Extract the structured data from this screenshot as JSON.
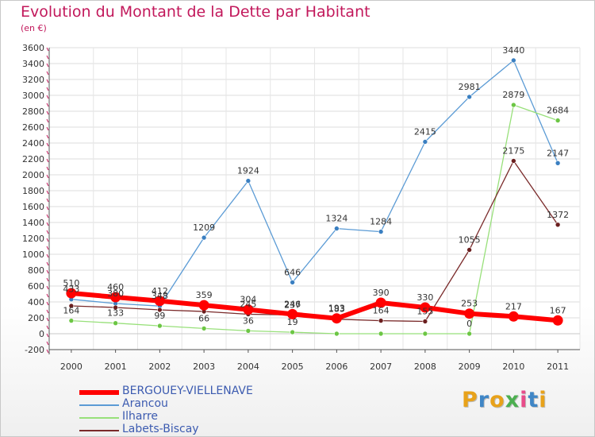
{
  "title": "Evolution du Montant de la Dette par Habitant",
  "unit": "(en €)",
  "logo": {
    "text": "Proxiti",
    "letter_colors": [
      "#e8a21a",
      "#3f86c6",
      "#e8a21a",
      "#4caf50",
      "#e84c8a",
      "#3f86c6",
      "#e8a21a"
    ]
  },
  "chart_data": {
    "type": "line",
    "title": "Evolution du Montant de la Dette par Habitant",
    "ylabel": "(en €)",
    "ylim": [
      -200,
      3600
    ],
    "yticks": [
      -200,
      0,
      200,
      400,
      600,
      800,
      1000,
      1200,
      1400,
      1600,
      1800,
      2000,
      2200,
      2400,
      2600,
      2800,
      3000,
      3200,
      3400,
      3600
    ],
    "x": [
      "2000",
      "2001",
      "2002",
      "2003",
      "2004",
      "2005",
      "2006",
      "2007",
      "2008",
      "2009",
      "2010",
      "2011"
    ],
    "grid": true,
    "legend_position": "bottom-left",
    "series": [
      {
        "name": "Arancou",
        "color": "#5b9bd5",
        "point_color": "#3a7fc1",
        "values": [
          433,
          380,
          348,
          1209,
          1924,
          646,
          1324,
          1284,
          2415,
          2981,
          3440,
          2147
        ],
        "labels": [
          "433",
          "380",
          "348",
          "1209",
          "1924",
          "646",
          "1324",
          "1284",
          "2415",
          "2981",
          "3440",
          "2147"
        ]
      },
      {
        "name": "Ilharre",
        "color": "#98e07a",
        "point_color": "#6cc644",
        "values": [
          164,
          133,
          99,
          66,
          36,
          19,
          0,
          0,
          0,
          0,
          2879,
          2684
        ],
        "labels": [
          "164",
          "133",
          "99",
          "66",
          "36",
          "19",
          "",
          "",
          "",
          "0",
          "2879",
          "2684"
        ]
      },
      {
        "name": "Labets-Biscay",
        "color": "#7a2a2a",
        "point_color": "#6b1f1f",
        "values": [
          350,
          330,
          300,
          280,
          245,
          237,
          183,
          164,
          155,
          1055,
          2175,
          1372
        ],
        "labels": [
          "",
          "",
          "",
          "",
          "245",
          "237",
          "183",
          "164",
          "155",
          "1055",
          "2175",
          "1372"
        ]
      },
      {
        "name": "BERGOUEY-VIELLENAVE",
        "color": "#ff0000",
        "point_color": "#ff0000",
        "values": [
          510,
          460,
          412,
          359,
          304,
          246,
          193,
          390,
          330,
          253,
          217,
          167
        ],
        "labels": [
          "510",
          "460",
          "412",
          "359",
          "304",
          "246",
          "193",
          "390",
          "330",
          "253",
          "217",
          "167"
        ]
      }
    ],
    "legend_order": [
      "BERGOUEY-VIELLENAVE",
      "Arancou",
      "Ilharre",
      "Labets-Biscay"
    ]
  }
}
